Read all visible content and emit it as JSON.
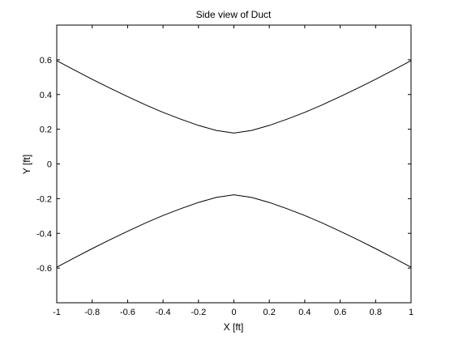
{
  "chart_data": {
    "type": "line",
    "title": "Side view of Duct",
    "xlabel": "X [ft]",
    "ylabel": "Y [ft]",
    "xlim": [
      -1,
      1
    ],
    "ylim": [
      -0.8,
      0.8
    ],
    "grid": false,
    "x_ticks": [
      "-1",
      "-0.8",
      "-0.6",
      "-0.4",
      "-0.2",
      "0",
      "0.2",
      "0.4",
      "0.6",
      "0.8",
      "1"
    ],
    "y_ticks": [
      "-0.6",
      "-0.4",
      "-0.2",
      "0",
      "0.2",
      "0.4",
      "0.6"
    ],
    "line_color": "#000000",
    "series": [
      {
        "x": [
          -1,
          -0.9,
          -0.8,
          -0.7,
          -0.6,
          -0.5,
          -0.4,
          -0.3,
          -0.2,
          -0.1,
          0,
          0.1,
          0.2,
          0.3,
          0.4,
          0.5,
          0.6,
          0.7,
          0.8,
          0.9,
          1
        ],
        "y": [
          0.595,
          0.541,
          0.488,
          0.437,
          0.388,
          0.341,
          0.297,
          0.258,
          0.222,
          0.193,
          0.178,
          0.193,
          0.222,
          0.258,
          0.297,
          0.341,
          0.388,
          0.437,
          0.488,
          0.541,
          0.595
        ]
      },
      {
        "x": [
          -1,
          -0.9,
          -0.8,
          -0.7,
          -0.6,
          -0.5,
          -0.4,
          -0.3,
          -0.2,
          -0.1,
          0,
          0.1,
          0.2,
          0.3,
          0.4,
          0.5,
          0.6,
          0.7,
          0.8,
          0.9,
          1
        ],
        "y": [
          -0.595,
          -0.541,
          -0.488,
          -0.437,
          -0.388,
          -0.341,
          -0.297,
          -0.258,
          -0.222,
          -0.193,
          -0.178,
          -0.193,
          -0.222,
          -0.258,
          -0.297,
          -0.341,
          -0.388,
          -0.437,
          -0.488,
          -0.541,
          -0.595
        ]
      }
    ]
  }
}
